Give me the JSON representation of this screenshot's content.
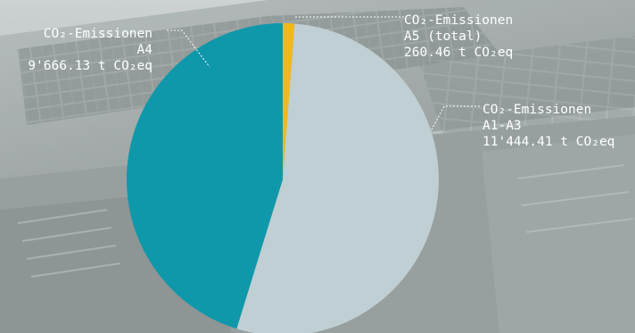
{
  "chart_data": {
    "type": "pie",
    "title": "",
    "unit": "t CO₂eq",
    "slices": [
      {
        "name": "CO₂-Emissionen A5 (total)",
        "value": 260.46,
        "color": "#f2b81b",
        "label_lines": [
          "CO₂-Emissionen",
          "A5 (total)",
          "260.46 t CO₂eq"
        ]
      },
      {
        "name": "CO₂-Emissionen A1-A3",
        "value": 11444.41,
        "color": "#bfcfd3",
        "label_lines": [
          "CO₂-Emissionen",
          "A1-A3",
          "11'444.41 t CO₂eq"
        ]
      },
      {
        "name": "CO₂-Emissionen A4",
        "value": 9666.13,
        "color": "#0f98aa",
        "label_lines": [
          "CO₂-Emissionen",
          "A4",
          "9'666.13 t CO₂eq"
        ]
      }
    ],
    "start_angle": "top",
    "direction": "clockwise",
    "legend": "none"
  },
  "colors": {
    "background_base": "#9fa6a6",
    "label_text": "#ffffff",
    "leader_line": "#ffffff"
  }
}
